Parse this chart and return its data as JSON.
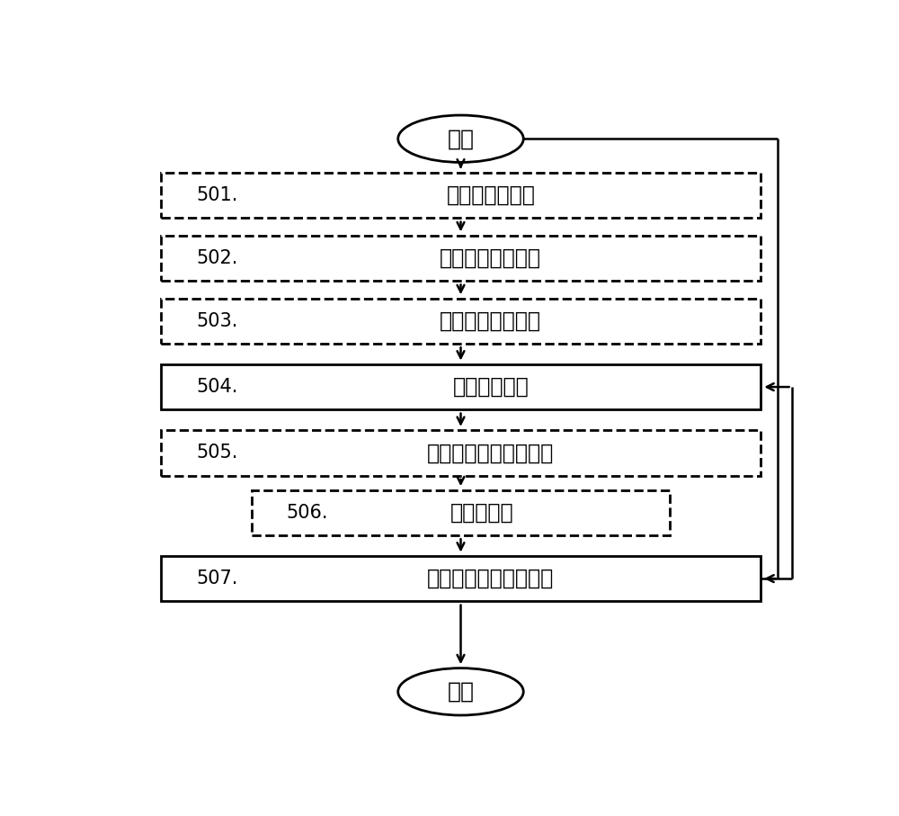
{
  "background_color": "#ffffff",
  "start_text": "开始",
  "end_text": "结束",
  "boxes": [
    {
      "id": "501",
      "label": "接收先前的指示",
      "style": "dashed",
      "narrow": false
    },
    {
      "id": "502",
      "label": "接收第一附加信息",
      "style": "dashed",
      "narrow": false
    },
    {
      "id": "503",
      "label": "接收第二附加信息",
      "style": "dashed",
      "narrow": false
    },
    {
      "id": "504",
      "label": "确定第一指示",
      "style": "solid",
      "narrow": false
    },
    {
      "id": "505",
      "label": "加密所确定的第一指示",
      "style": "dashed",
      "narrow": false
    },
    {
      "id": "506",
      "label": "提供标识符",
      "style": "dashed",
      "narrow": true
    },
    {
      "id": "507",
      "label": "提供所确定的第一指示",
      "style": "solid",
      "narrow": false
    }
  ],
  "fig_width": 10.0,
  "fig_height": 9.07
}
